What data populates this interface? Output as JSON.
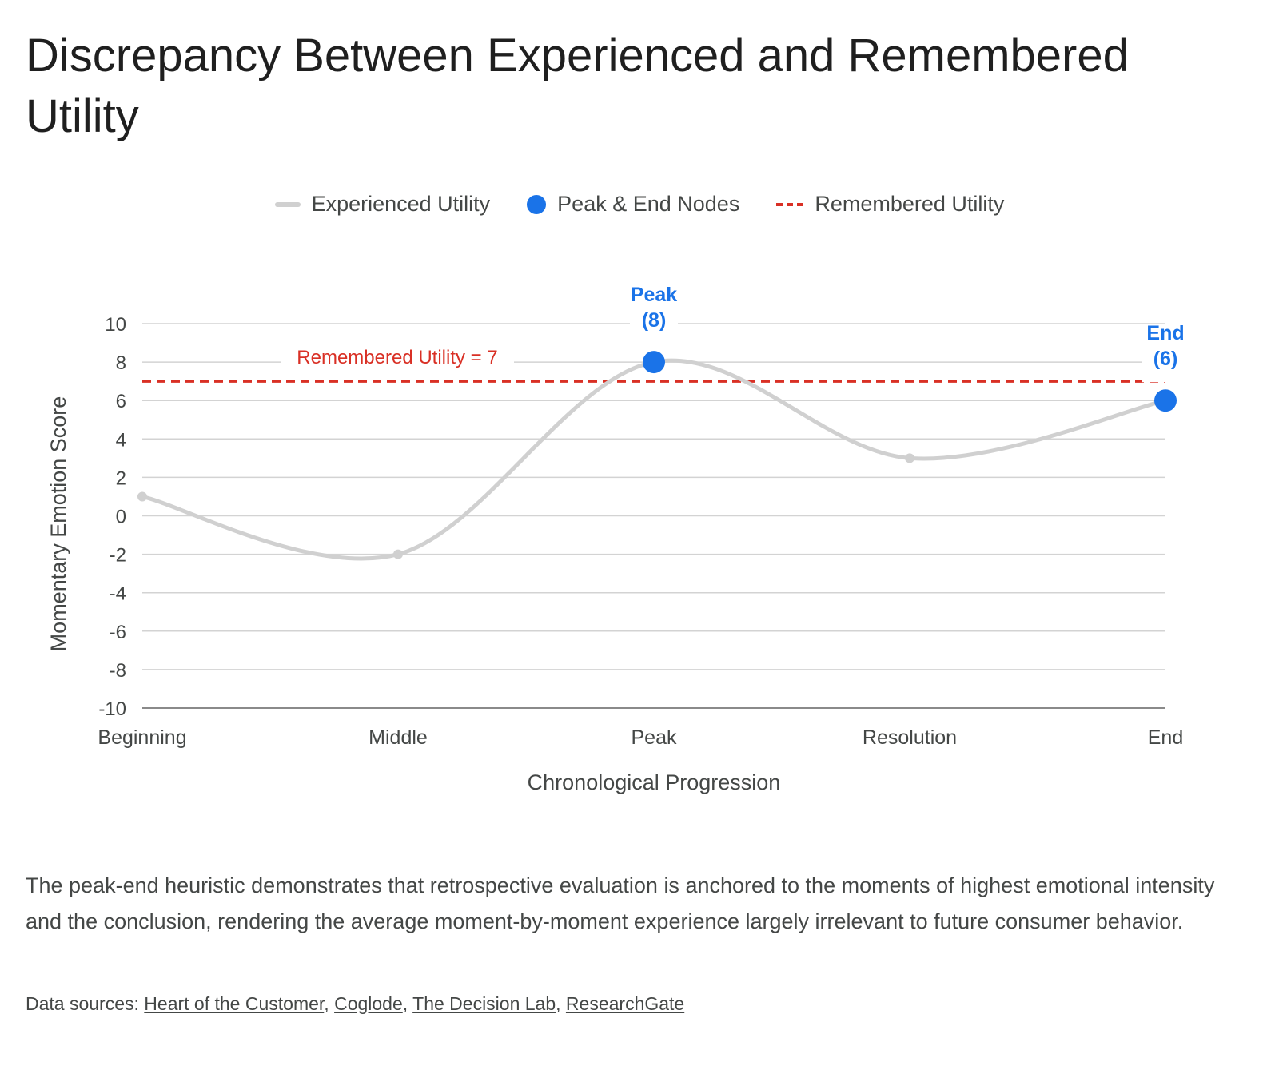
{
  "title": "Discrepancy Between Experienced and Remembered Utility",
  "legend": {
    "experienced": "Experienced Utility",
    "nodes": "Peak & End Nodes",
    "remembered": "Remembered Utility"
  },
  "chart_data": {
    "type": "line",
    "categories": [
      "Beginning",
      "Middle",
      "Peak",
      "Resolution",
      "End"
    ],
    "series": [
      {
        "name": "Experienced Utility",
        "values": [
          1,
          -2,
          8,
          3,
          6
        ]
      }
    ],
    "highlight_nodes": [
      {
        "category": "Peak",
        "value": 8,
        "label_line1": "Peak",
        "label_line2": "(8)"
      },
      {
        "category": "End",
        "value": 6,
        "label_line1": "End",
        "label_line2": "(6)"
      }
    ],
    "reference_line": {
      "name": "Remembered Utility",
      "value": 7,
      "label": "Remembered Utility = 7"
    },
    "xlabel": "Chronological Progression",
    "ylabel": "Momentary Emotion Score",
    "ylim": [
      -10,
      10
    ],
    "yticks": [
      10,
      8,
      6,
      4,
      2,
      0,
      -2,
      -4,
      -6,
      -8,
      -10
    ],
    "grid": true,
    "legend_position": "top",
    "colors": {
      "line": "#d0d0d0",
      "nodes": "#1a73e8",
      "reference": "#d93025"
    }
  },
  "caption": "The peak-end heuristic demonstrates that retrospective evaluation is anchored to the moments of highest emotional intensity and the conclusion, rendering the average moment-by-moment experience largely irrelevant to future consumer behavior.",
  "sources": {
    "prefix": "Data sources: ",
    "links": [
      "Heart of the Customer",
      "Coglode",
      "The Decision Lab",
      "ResearchGate"
    ]
  }
}
